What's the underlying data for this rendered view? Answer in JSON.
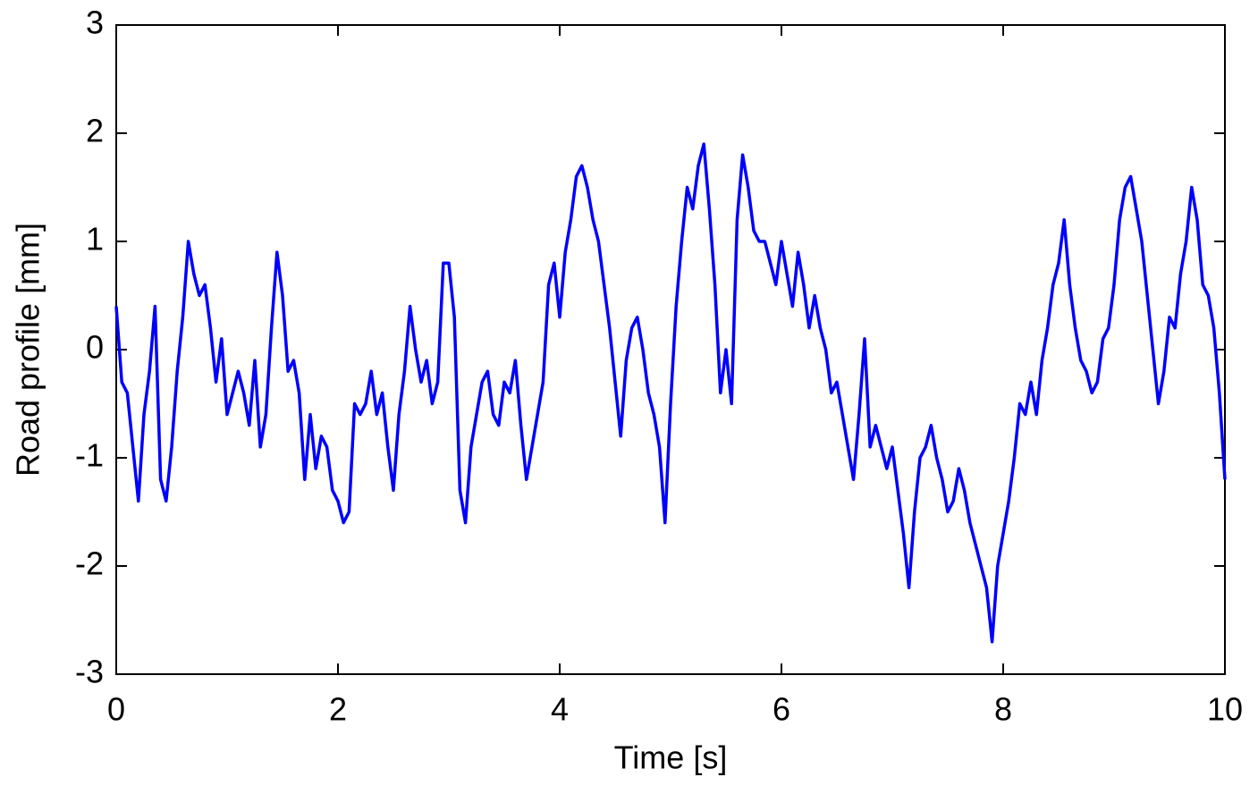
{
  "chart_data": {
    "type": "line",
    "x_label": "Time [s]",
    "y_label": "Road profile [mm]",
    "xlim": [
      0,
      10
    ],
    "ylim": [
      -3,
      3
    ],
    "xticks": [
      0,
      2,
      4,
      6,
      8,
      10
    ],
    "yticks": [
      -3,
      -2,
      -1,
      0,
      1,
      2,
      3
    ],
    "series": [
      {
        "color": "#0000ff",
        "x": [
          0,
          0.05,
          0.1,
          0.15,
          0.2,
          0.25,
          0.3,
          0.35,
          0.4,
          0.45,
          0.5,
          0.55,
          0.6,
          0.65,
          0.7,
          0.75,
          0.8,
          0.85,
          0.9,
          0.95,
          1,
          1.05,
          1.1,
          1.15,
          1.2,
          1.25,
          1.3,
          1.35,
          1.4,
          1.45,
          1.5,
          1.55,
          1.6,
          1.65,
          1.7,
          1.75,
          1.8,
          1.85,
          1.9,
          1.95,
          2,
          2.05,
          2.1,
          2.15,
          2.2,
          2.25,
          2.3,
          2.35,
          2.4,
          2.45,
          2.5,
          2.55,
          2.6,
          2.65,
          2.7,
          2.75,
          2.8,
          2.85,
          2.9,
          2.95,
          3,
          3.05,
          3.1,
          3.15,
          3.2,
          3.25,
          3.3,
          3.35,
          3.4,
          3.45,
          3.5,
          3.55,
          3.6,
          3.65,
          3.7,
          3.75,
          3.8,
          3.85,
          3.9,
          3.95,
          4,
          4.05,
          4.1,
          4.15,
          4.2,
          4.25,
          4.3,
          4.35,
          4.4,
          4.45,
          4.5,
          4.55,
          4.6,
          4.65,
          4.7,
          4.75,
          4.8,
          4.85,
          4.9,
          4.95,
          5,
          5.05,
          5.1,
          5.15,
          5.2,
          5.25,
          5.3,
          5.35,
          5.4,
          5.45,
          5.5,
          5.55,
          5.6,
          5.65,
          5.7,
          5.75,
          5.8,
          5.85,
          5.9,
          5.95,
          6,
          6.05,
          6.1,
          6.15,
          6.2,
          6.25,
          6.3,
          6.35,
          6.4,
          6.45,
          6.5,
          6.55,
          6.6,
          6.65,
          6.7,
          6.75,
          6.8,
          6.85,
          6.9,
          6.95,
          7,
          7.05,
          7.1,
          7.15,
          7.2,
          7.25,
          7.3,
          7.35,
          7.4,
          7.45,
          7.5,
          7.55,
          7.6,
          7.65,
          7.7,
          7.75,
          7.8,
          7.85,
          7.9,
          7.95,
          8,
          8.05,
          8.1,
          8.15,
          8.2,
          8.25,
          8.3,
          8.35,
          8.4,
          8.45,
          8.5,
          8.55,
          8.6,
          8.65,
          8.7,
          8.75,
          8.8,
          8.85,
          8.9,
          8.95,
          9,
          9.05,
          9.1,
          9.15,
          9.2,
          9.25,
          9.3,
          9.35,
          9.4,
          9.45,
          9.5,
          9.55,
          9.6,
          9.65,
          9.7,
          9.75,
          9.8,
          9.85,
          9.9,
          9.95,
          10
        ],
        "values": [
          0.4,
          -0.3,
          -0.4,
          -0.9,
          -1.4,
          -0.6,
          -0.2,
          0.4,
          -1.2,
          -1.4,
          -0.9,
          -0.2,
          0.3,
          1.0,
          0.7,
          0.5,
          0.6,
          0.2,
          -0.3,
          0.1,
          -0.6,
          -0.4,
          -0.2,
          -0.4,
          -0.7,
          -0.1,
          -0.9,
          -0.6,
          0.2,
          0.9,
          0.5,
          -0.2,
          -0.1,
          -0.4,
          -1.2,
          -0.6,
          -1.1,
          -0.8,
          -0.9,
          -1.3,
          -1.4,
          -1.6,
          -1.5,
          -0.5,
          -0.6,
          -0.5,
          -0.2,
          -0.6,
          -0.4,
          -0.9,
          -1.3,
          -0.6,
          -0.2,
          0.4,
          0.0,
          -0.3,
          -0.1,
          -0.5,
          -0.3,
          0.8,
          0.8,
          0.3,
          -1.3,
          -1.6,
          -0.9,
          -0.6,
          -0.3,
          -0.2,
          -0.6,
          -0.7,
          -0.3,
          -0.4,
          -0.1,
          -0.7,
          -1.2,
          -0.9,
          -0.6,
          -0.3,
          0.6,
          0.8,
          0.3,
          0.9,
          1.2,
          1.6,
          1.7,
          1.5,
          1.2,
          1.0,
          0.6,
          0.2,
          -0.3,
          -0.8,
          -0.1,
          0.2,
          0.3,
          0.0,
          -0.4,
          -0.6,
          -0.9,
          -1.6,
          -0.5,
          0.4,
          1.0,
          1.5,
          1.3,
          1.7,
          1.9,
          1.3,
          0.6,
          -0.4,
          0.0,
          -0.5,
          1.2,
          1.8,
          1.5,
          1.1,
          1.0,
          1.0,
          0.8,
          0.6,
          1.0,
          0.7,
          0.4,
          0.9,
          0.6,
          0.2,
          0.5,
          0.2,
          0.0,
          -0.4,
          -0.3,
          -0.6,
          -0.9,
          -1.2,
          -0.6,
          0.1,
          -0.9,
          -0.7,
          -0.9,
          -1.1,
          -0.9,
          -1.3,
          -1.7,
          -2.2,
          -1.5,
          -1.0,
          -0.9,
          -0.7,
          -1.0,
          -1.2,
          -1.5,
          -1.4,
          -1.1,
          -1.3,
          -1.6,
          -1.8,
          -2.0,
          -2.2,
          -2.7,
          -2.0,
          -1.7,
          -1.4,
          -1.0,
          -0.5,
          -0.6,
          -0.3,
          -0.6,
          -0.1,
          0.2,
          0.6,
          0.8,
          1.2,
          0.6,
          0.2,
          -0.1,
          -0.2,
          -0.4,
          -0.3,
          0.1,
          0.2,
          0.6,
          1.2,
          1.5,
          1.6,
          1.3,
          1.0,
          0.5,
          0.0,
          -0.5,
          -0.2,
          0.3,
          0.2,
          0.7,
          1.0,
          1.5,
          1.2,
          0.6,
          0.5,
          0.2,
          -0.4,
          -1.2
        ]
      }
    ]
  }
}
